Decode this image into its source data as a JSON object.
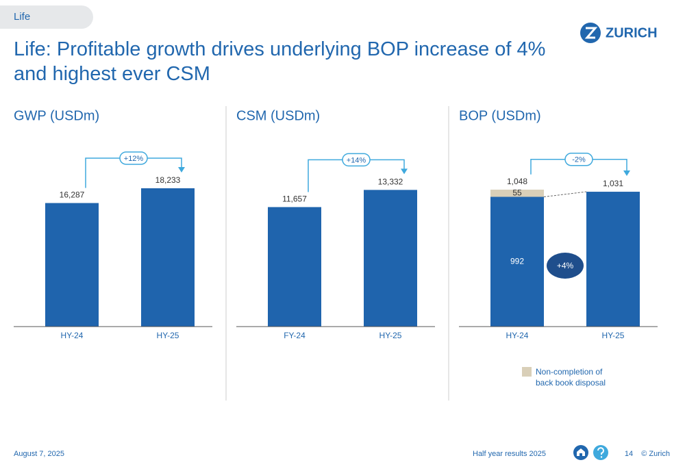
{
  "tab": "Life",
  "title": "Life: Profitable growth drives underlying BOP increase of 4% and highest ever CSM",
  "logo": "ZURICH",
  "chart_data": [
    {
      "type": "bar",
      "title": "GWP (USDm)",
      "categories": [
        "HY-24",
        "HY-25"
      ],
      "values": [
        16287,
        18233
      ],
      "value_labels": [
        "16,287",
        "18,233"
      ],
      "color": "#1f64ad",
      "ylim": [
        0,
        25000
      ],
      "growth_label": "+12%"
    },
    {
      "type": "bar",
      "title": "CSM (USDm)",
      "categories": [
        "FY-24",
        "HY-25"
      ],
      "values": [
        11657,
        13332
      ],
      "value_labels": [
        "11,657",
        "13,332"
      ],
      "color": "#1f64ad",
      "ylim": [
        0,
        18500
      ],
      "growth_label": "+14%"
    },
    {
      "type": "stacked_bar",
      "title": "BOP (USDm)",
      "categories": [
        "HY-24",
        "HY-25"
      ],
      "series": [
        {
          "color": "#1f64ad",
          "values": [
            992,
            1031
          ],
          "value_labels": [
            "992",
            "1,031"
          ]
        },
        {
          "name": "Non-completion of back book disposal",
          "color": "#d9cfb8",
          "values": [
            55,
            null
          ],
          "value_labels": [
            "55",
            null
          ]
        }
      ],
      "totals": [
        1048,
        null
      ],
      "total_labels": [
        "1,048",
        null
      ],
      "ylim": [
        0,
        1450
      ],
      "growth_label": "-2%",
      "annotation": "+4%"
    }
  ],
  "footer": {
    "date": "August 7, 2025",
    "event": "Half year results 2025",
    "page": "14",
    "copyright": "© Zurich"
  }
}
